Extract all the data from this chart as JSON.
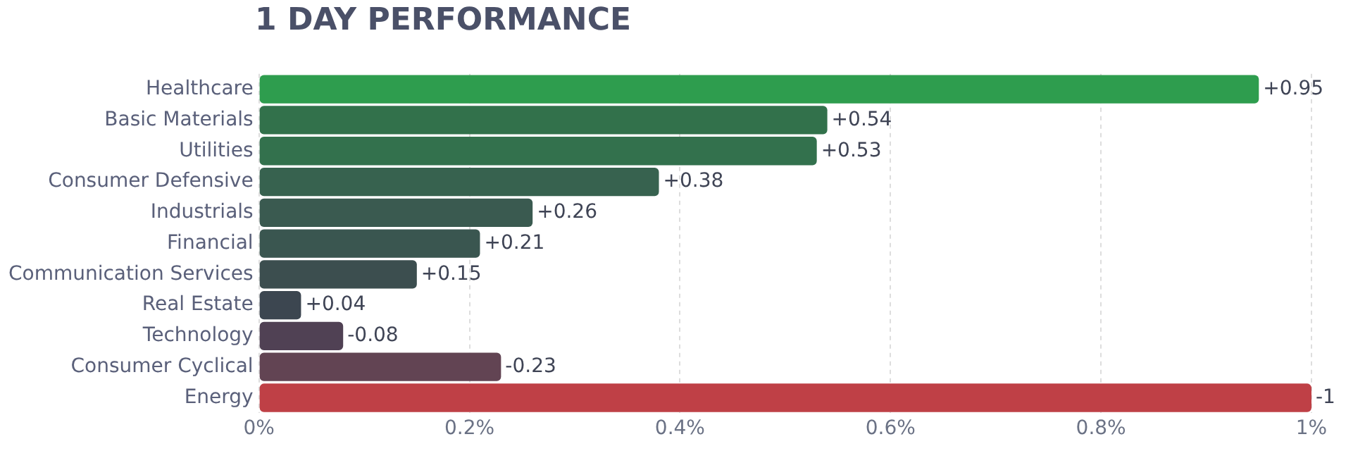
{
  "chart_data": {
    "type": "bar",
    "orientation": "horizontal",
    "title": "1 DAY PERFORMANCE",
    "categories": [
      "Healthcare",
      "Basic Materials",
      "Utilities",
      "Consumer Defensive",
      "Industrials",
      "Financial",
      "Communication Services",
      "Real Estate",
      "Technology",
      "Consumer Cyclical",
      "Energy"
    ],
    "values": [
      0.95,
      0.54,
      0.53,
      0.38,
      0.26,
      0.21,
      0.15,
      0.04,
      -0.08,
      -0.23,
      -1
    ],
    "base": [
      0,
      0,
      0,
      0,
      0,
      0,
      0,
      0,
      0.08,
      0.23,
      1
    ],
    "value_labels": [
      "+0.95",
      "+0.54",
      "+0.53",
      "+0.38",
      "+0.26",
      "+0.21",
      "+0.15",
      "+0.04",
      "-0.08",
      "-0.23",
      "-1"
    ],
    "colors": [
      "#2e9d4e",
      "#32714b",
      "#33714d",
      "#37624f",
      "#3a5a50",
      "#3a5650",
      "#3c4e4f",
      "#3c4650",
      "#504154",
      "#624453",
      "#bf4046"
    ],
    "xlim": [
      0,
      1
    ],
    "xticks": [
      {
        "value": 0,
        "label": "0%"
      },
      {
        "value": 0.2,
        "label": "0.2%"
      },
      {
        "value": 0.4,
        "label": "0.4%"
      },
      {
        "value": 0.6,
        "label": "0.6%"
      },
      {
        "value": 0.8,
        "label": "0.8%"
      },
      {
        "value": 1,
        "label": "1%"
      }
    ],
    "grid": "x",
    "legend": false
  }
}
